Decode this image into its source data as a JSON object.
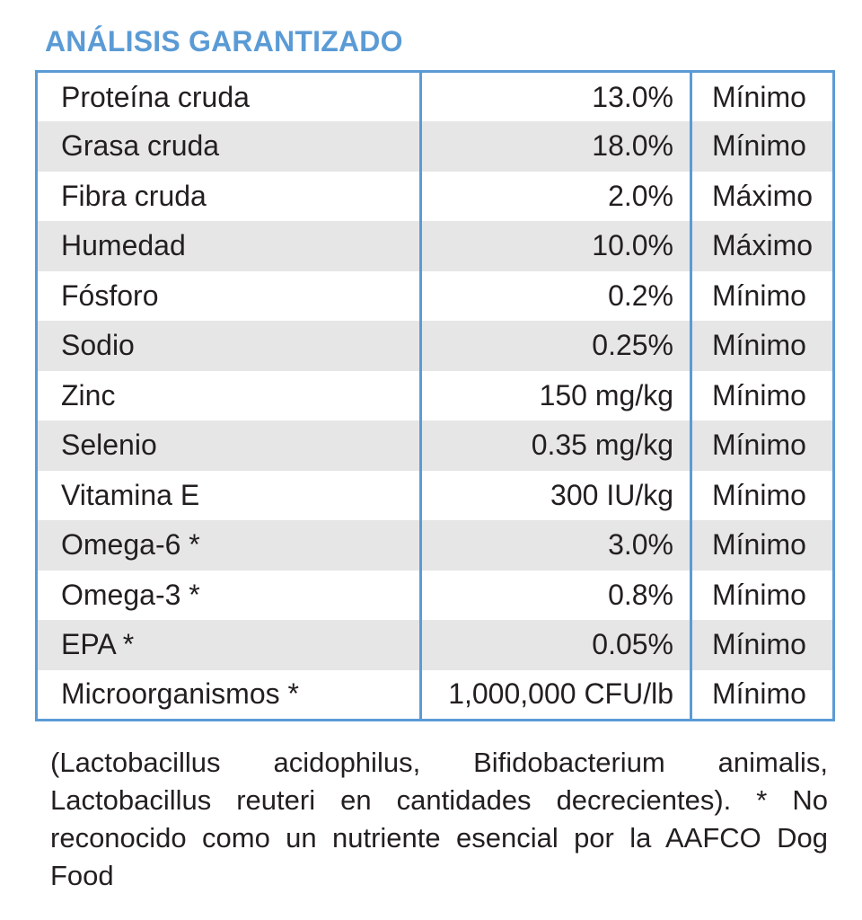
{
  "title": "ANÁLISIS GARANTIZADO",
  "table": {
    "rows": [
      [
        "Proteína cruda",
        "13.0%",
        "Mínimo"
      ],
      [
        "Grasa cruda",
        "18.0%",
        "Mínimo"
      ],
      [
        "Fibra cruda",
        "2.0%",
        "Máximo"
      ],
      [
        "Humedad",
        "10.0%",
        "Máximo"
      ],
      [
        "Fósforo",
        "0.2%",
        "Mínimo"
      ],
      [
        "Sodio",
        "0.25%",
        "Mínimo"
      ],
      [
        "Zinc",
        "150 mg/kg",
        "Mínimo"
      ],
      [
        "Selenio",
        "0.35 mg/kg",
        "Mínimo"
      ],
      [
        "Vitamina E",
        "300 IU/kg",
        "Mínimo"
      ],
      [
        "Omega-6 *",
        "3.0%",
        "Mínimo"
      ],
      [
        "Omega-3 *",
        "0.8%",
        "Mínimo"
      ],
      [
        "EPA *",
        "0.05%",
        "Mínimo"
      ],
      [
        "Microorganismos *",
        "1,000,000 CFU/lb",
        "Mínimo"
      ]
    ]
  },
  "footnote": "(Lactobacillus acidophilus, Bifidobacterium animalis, Lactobacillus reuteri en cantidades decrecientes). * No reconocido como un nutriente esencial por la AAFCO Dog Food"
}
